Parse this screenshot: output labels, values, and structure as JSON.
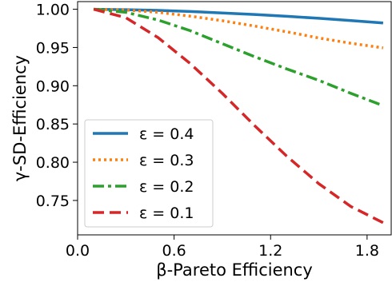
{
  "chart_data": {
    "type": "line",
    "title": "",
    "xlabel": "β-Pareto Efficiency",
    "ylabel": "γ-SD-Efficiency",
    "xlim": [
      0.0,
      1.95
    ],
    "ylim": [
      0.705,
      1.01
    ],
    "xticks": [
      0.0,
      0.6,
      1.2,
      1.8
    ],
    "xtick_labels": [
      "0.0",
      "0.6",
      "1.2",
      "1.8"
    ],
    "yticks": [
      0.75,
      0.8,
      0.85,
      0.9,
      0.95,
      1.0
    ],
    "ytick_labels": [
      "0.75",
      "0.80",
      "0.85",
      "0.90",
      "0.95",
      "1.00"
    ],
    "grid": false,
    "legend_position": "lower-left",
    "series": [
      {
        "name": "ε = 0.4",
        "color": "#1f77b4",
        "style": "solid",
        "x": [
          0.1,
          0.3,
          0.5,
          0.7,
          0.9,
          1.1,
          1.3,
          1.5,
          1.7,
          1.9
        ],
        "y": [
          1.0,
          0.9995,
          0.9985,
          0.997,
          0.9952,
          0.9932,
          0.9908,
          0.9882,
          0.9852,
          0.982
        ]
      },
      {
        "name": "ε = 0.3",
        "color": "#ff7f0e",
        "style": "dotted",
        "x": [
          0.1,
          0.3,
          0.5,
          0.7,
          0.9,
          1.1,
          1.3,
          1.5,
          1.7,
          1.9
        ],
        "y": [
          1.0,
          0.999,
          0.996,
          0.991,
          0.985,
          0.978,
          0.9705,
          0.9625,
          0.9555,
          0.9495
        ]
      },
      {
        "name": "ε = 0.2",
        "color": "#2ca02c",
        "style": "dashdot",
        "x": [
          0.1,
          0.3,
          0.5,
          0.7,
          0.9,
          1.1,
          1.3,
          1.5,
          1.7,
          1.9
        ],
        "y": [
          1.0,
          0.996,
          0.986,
          0.972,
          0.955,
          0.938,
          0.922,
          0.907,
          0.89,
          0.874
        ]
      },
      {
        "name": "ε = 0.1",
        "color": "#d62728",
        "style": "dashed",
        "x": [
          0.1,
          0.3,
          0.5,
          0.7,
          0.9,
          1.1,
          1.3,
          1.5,
          1.7,
          1.9
        ],
        "y": [
          1.0,
          0.989,
          0.963,
          0.929,
          0.89,
          0.848,
          0.808,
          0.772,
          0.742,
          0.721
        ]
      }
    ]
  }
}
